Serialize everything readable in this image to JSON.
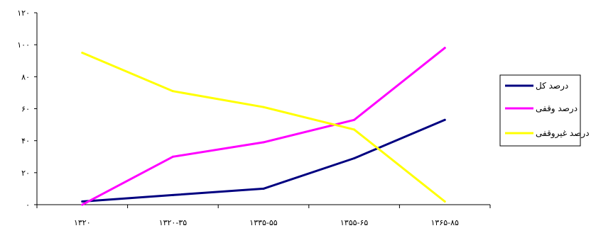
{
  "chart_data": {
    "type": "line",
    "categories": [
      "۱۳۲۰",
      "۱۳۲۰-۳۵",
      "۱۳۳۵-۵۵",
      "۱۳۵۵-۶۵",
      "۱۳۶۵-۸۵"
    ],
    "series": [
      {
        "name": "درصد کل",
        "color": "#000080",
        "values": [
          2,
          6,
          10,
          29,
          53
        ]
      },
      {
        "name": "درصد وقفی",
        "color": "#ff00ff",
        "values": [
          0,
          30,
          39,
          53,
          98
        ]
      },
      {
        "name": "درصد غیروقفی",
        "color": "#ffff00",
        "values": [
          95,
          71,
          61,
          47,
          2
        ]
      }
    ],
    "yticks": [
      "۰",
      "۲۰",
      "۴۰",
      "۶۰",
      "۸۰",
      "۱۰۰",
      "۱۲۰"
    ],
    "ylim": [
      0,
      120
    ],
    "grid": false,
    "legend_position": "right",
    "title": "",
    "xlabel": "",
    "ylabel": ""
  }
}
